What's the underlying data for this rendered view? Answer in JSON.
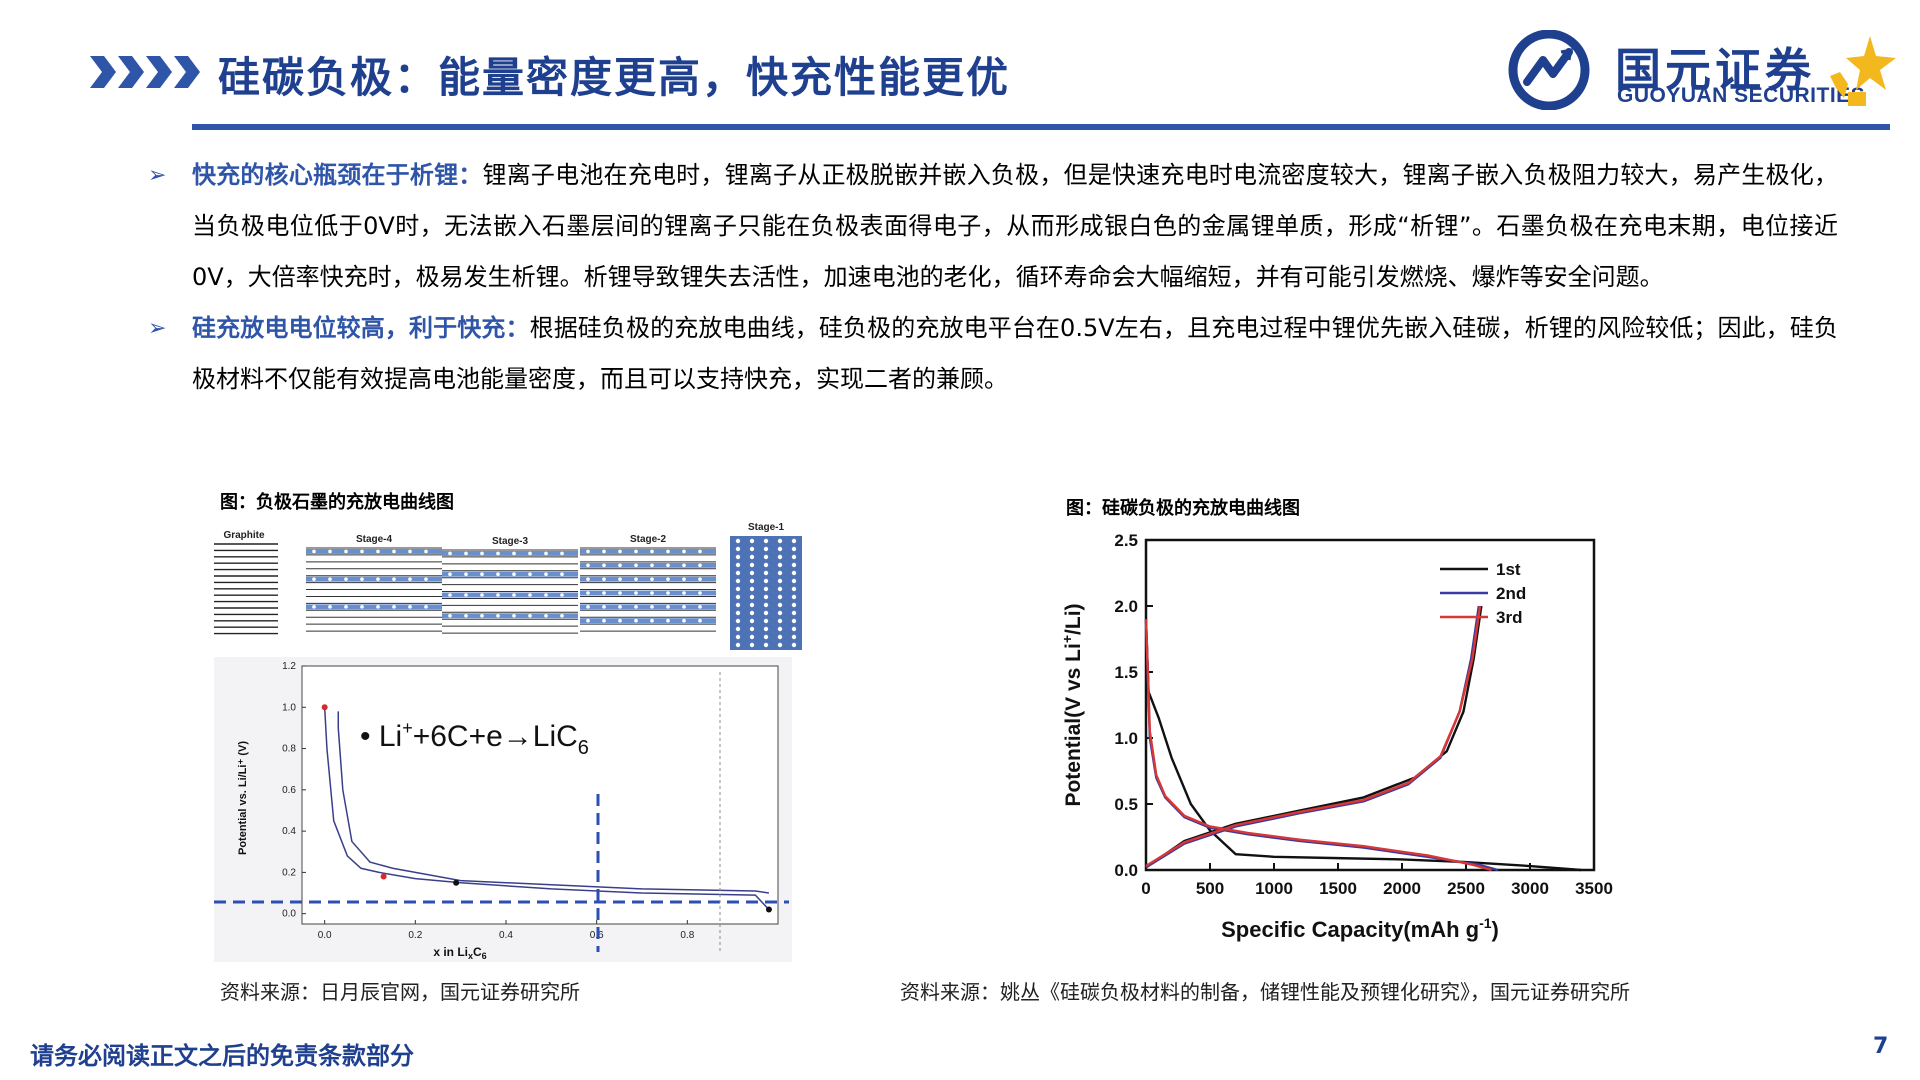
{
  "header": {
    "title": "硅碳负极：能量密度更高，快充性能更优",
    "logo_cn": "国元证券",
    "logo_en": "GUOYUAN SECURITIES"
  },
  "bullets": [
    {
      "lead": "快充的核心瓶颈在于析锂：",
      "text": "锂离子电池在充电时，锂离子从正极脱嵌并嵌入负极，但是快速充电时电流密度较大，锂离子嵌入负极阻力较大，易产生极化，当负极电位低于0V时，无法嵌入石墨层间的锂离子只能在负极表面得电子，从而形成银白色的金属锂单质，形成“析锂”。石墨负极在充电末期，电位接近0V，大倍率快充时，极易发生析锂。析锂导致锂失去活性，加速电池的老化，循环寿命会大幅缩短，并有可能引发燃烧、爆炸等安全问题。"
    },
    {
      "lead": "硅充放电电位较高，利于快充：",
      "text": "根据硅负极的充放电曲线，硅负极的充放电平台在0.5V左右，且充电过程中锂优先嵌入硅碳，析锂的风险较低；因此，硅负极材料不仅能有效提高电池能量密度，而且可以支持快充，实现二者的兼顾。"
    }
  ],
  "figure_left": {
    "caption": "图：负极石墨的充放电曲线图",
    "source": "资料来源：日月辰官网，国元证券研究所",
    "stage_labels": [
      "Graphite",
      "Stage-4",
      "Stage-3",
      "Stage-2",
      "Stage-1"
    ],
    "equation": "• Li⁺+6C+e→LiC₆"
  },
  "figure_right": {
    "caption": "图：硅碳负极的充放电曲线图",
    "source": "资料来源：姚丛《硅碳负极材料的制备，储锂性能及预锂化研究》，国元证券研究所"
  },
  "chart_data": [
    {
      "type": "line",
      "title": "",
      "xlabel": "x in LixC6",
      "ylabel": "Potential vs. Li/Li+ (V)",
      "xlim": [
        -0.05,
        1.0
      ],
      "ylim": [
        -0.05,
        1.2
      ],
      "x_ticks": [
        "0.0",
        "0.2",
        "0.4",
        "0.6",
        "0.8"
      ],
      "y_ticks": [
        "0.0",
        "0.2",
        "0.4",
        "0.6",
        "0.8",
        "1.0",
        "1.2"
      ],
      "series": [
        {
          "x": [
            0.0,
            0.005,
            0.02,
            0.05,
            0.08,
            0.12,
            0.2,
            0.3,
            0.5,
            0.7,
            0.95,
            0.98
          ],
          "y": [
            1.0,
            0.8,
            0.45,
            0.28,
            0.22,
            0.2,
            0.17,
            0.15,
            0.12,
            0.1,
            0.09,
            0.02
          ]
        },
        {
          "x": [
            0.98,
            0.95,
            0.7,
            0.5,
            0.3,
            0.15,
            0.1,
            0.06,
            0.04,
            0.03,
            0.03
          ],
          "y": [
            0.1,
            0.11,
            0.12,
            0.14,
            0.16,
            0.22,
            0.25,
            0.35,
            0.6,
            0.9,
            0.98
          ]
        }
      ]
    },
    {
      "type": "line",
      "title": "",
      "xlabel": "Specific Capacity(mAh g⁻¹)",
      "ylabel": "Potential(V vs Li⁺/Li)",
      "xlim": [
        0,
        3500
      ],
      "ylim": [
        0,
        2.5
      ],
      "x_ticks": [
        "0",
        "500",
        "1000",
        "1500",
        "2000",
        "2500",
        "3000",
        "3500"
      ],
      "y_ticks": [
        "0.0",
        "0.5",
        "1.0",
        "1.5",
        "2.0",
        "2.5"
      ],
      "legend_position": "top-right",
      "series": [
        {
          "name": "1st",
          "color": "#111111",
          "x": [
            0,
            20,
            100,
            200,
            350,
            500,
            700,
            1000,
            1500,
            2000,
            2500,
            3000,
            3400,
            0,
            300,
            700,
            1200,
            1700,
            2100,
            2350,
            2480,
            2560,
            2620
          ],
          "y": [
            1.9,
            1.35,
            1.15,
            0.85,
            0.5,
            0.3,
            0.12,
            0.1,
            0.09,
            0.08,
            0.06,
            0.03,
            0.0,
            0.02,
            0.22,
            0.35,
            0.45,
            0.55,
            0.7,
            0.9,
            1.2,
            1.6,
            2.0
          ]
        },
        {
          "name": "2nd",
          "color": "#3a3aa0",
          "x": [
            0,
            30,
            80,
            150,
            300,
            500,
            800,
            1200,
            1700,
            2200,
            2600,
            2750,
            0,
            300,
            700,
            1200,
            1700,
            2050,
            2300,
            2450,
            2540,
            2600
          ],
          "y": [
            1.9,
            1.0,
            0.7,
            0.55,
            0.4,
            0.32,
            0.27,
            0.22,
            0.17,
            0.1,
            0.04,
            0.0,
            0.02,
            0.2,
            0.33,
            0.43,
            0.52,
            0.65,
            0.85,
            1.2,
            1.6,
            2.0
          ]
        },
        {
          "name": "3rd",
          "color": "#d93636",
          "x": [
            0,
            30,
            80,
            150,
            300,
            500,
            800,
            1200,
            1700,
            2200,
            2550,
            2700,
            0,
            300,
            700,
            1200,
            1700,
            2050,
            2300,
            2450,
            2550,
            2610
          ],
          "y": [
            1.9,
            1.05,
            0.72,
            0.56,
            0.41,
            0.33,
            0.28,
            0.23,
            0.18,
            0.11,
            0.04,
            0.0,
            0.03,
            0.21,
            0.34,
            0.44,
            0.53,
            0.66,
            0.86,
            1.2,
            1.6,
            2.0
          ]
        }
      ]
    }
  ],
  "footer": {
    "note": "请务必阅读正文之后的免责条款部分",
    "page": "7"
  }
}
